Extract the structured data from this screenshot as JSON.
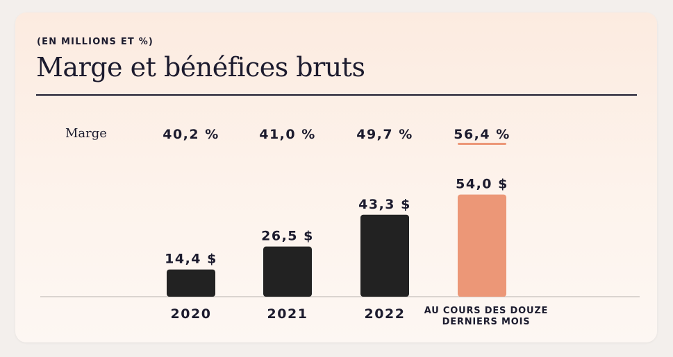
{
  "header": {
    "subtitle": "(EN MILLIONS ET %)",
    "title": "Marge et bénéfices bruts"
  },
  "chart_data": {
    "type": "bar",
    "title": "Marge et bénéfices bruts",
    "subtitle": "(EN MILLIONS ET %)",
    "categories": [
      "2020",
      "2021",
      "2022",
      "AU COURS DES DOUZE DERNIERS MOIS"
    ],
    "category_lines": [
      [
        "2020"
      ],
      [
        "2021"
      ],
      [
        "2022"
      ],
      [
        "AU COURS DES DOUZE",
        "DERNIERS MOIS"
      ]
    ],
    "series": [
      {
        "values": [
          14.4,
          26.5,
          43.3,
          54.0
        ],
        "value_labels": [
          "14,4 $",
          "26,5 $",
          "43,3 $",
          "54,0 $"
        ]
      }
    ],
    "margin": {
      "label": "Marge",
      "values": [
        40.2,
        41.0,
        49.7,
        56.4
      ],
      "value_labels": [
        "40,2 %",
        "41,0 %",
        "49,7 %",
        "56,4 %"
      ]
    },
    "bar_colors": [
      "#222222",
      "#222222",
      "#222222",
      "#ec9777"
    ],
    "highlight_underline_color": "#ec9777",
    "grid": false,
    "legend": "none"
  }
}
